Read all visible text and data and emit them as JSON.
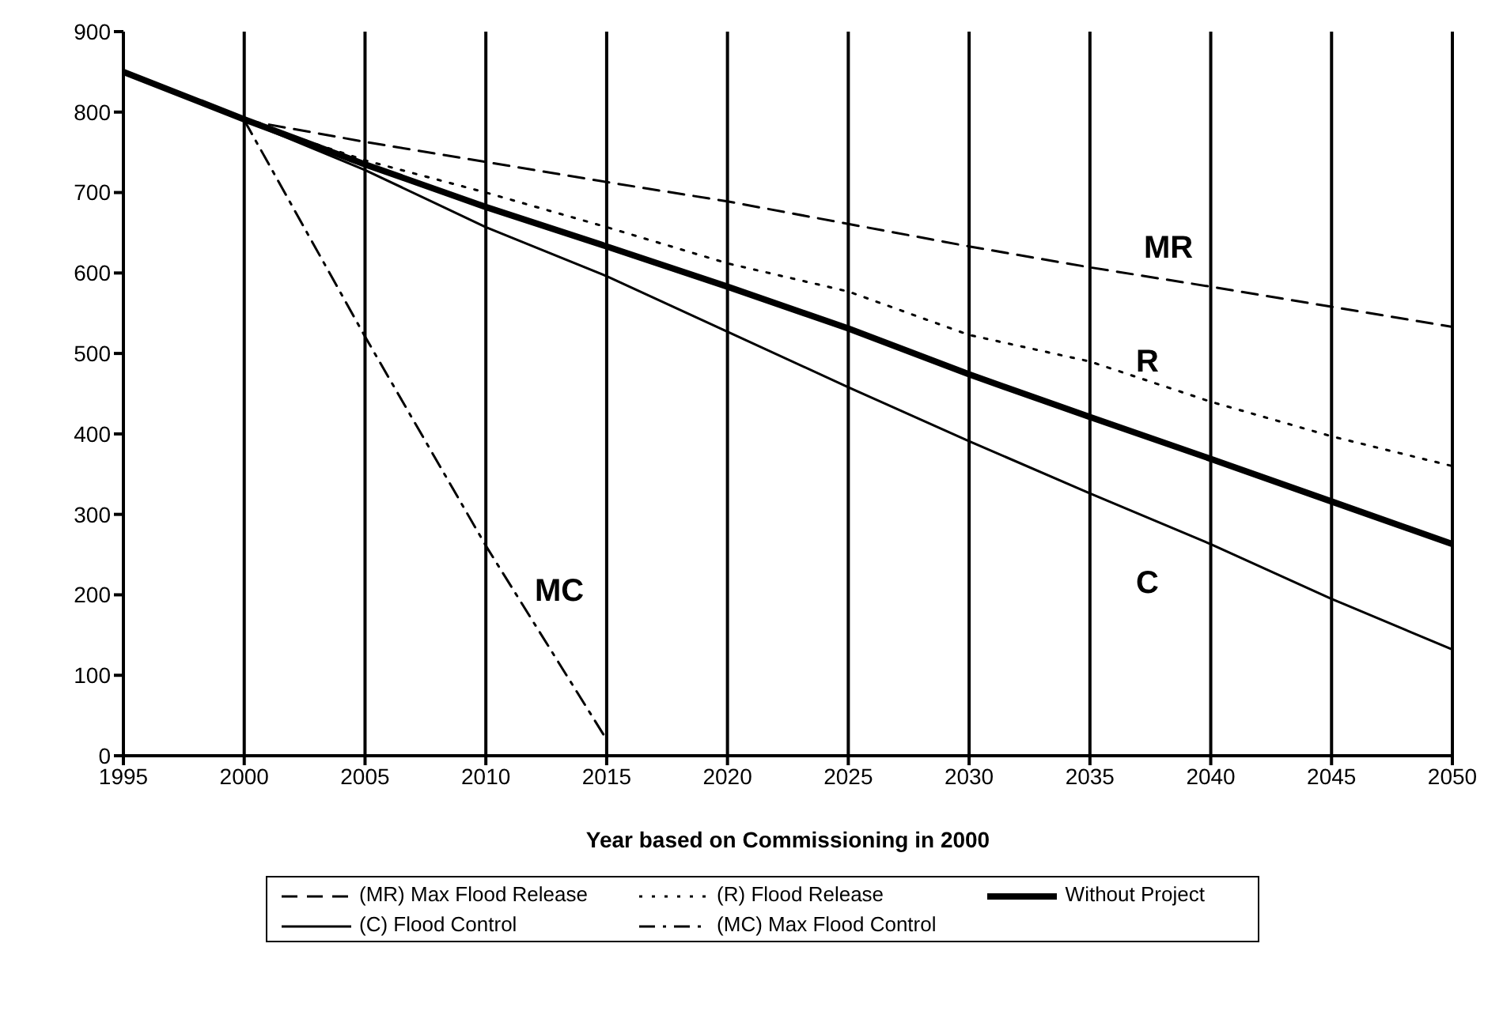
{
  "chart_data": {
    "type": "line",
    "xlabel": "Year based on Commissioning in 2000",
    "x": [
      1995,
      2000,
      2005,
      2010,
      2015,
      2020,
      2025,
      2030,
      2035,
      2040,
      2045,
      2050
    ],
    "series": [
      {
        "name": "(MR) Max Flood Release",
        "color": "#000000",
        "line_style": "dashed",
        "x": [
          2000,
          2005,
          2010,
          2015,
          2020,
          2025,
          2030,
          2035,
          2040,
          2045,
          2050
        ],
        "values": [
          790,
          763,
          738,
          713,
          689,
          661,
          633,
          607,
          583,
          558,
          533
        ]
      },
      {
        "name": "(R) Flood Release",
        "color": "#000000",
        "line_style": "dotted",
        "x": [
          2000,
          2005,
          2010,
          2015,
          2020,
          2025,
          2030,
          2035,
          2040,
          2045,
          2050
        ],
        "values": [
          790,
          740,
          700,
          657,
          612,
          577,
          523,
          490,
          440,
          397,
          360
        ]
      },
      {
        "name": "Without Project",
        "color": "#000000",
        "line_style": "solid",
        "values": [
          850,
          791,
          735,
          682,
          633,
          583,
          531,
          474,
          421,
          369,
          316,
          263
        ]
      },
      {
        "name": "(C) Flood Control",
        "color": "#000000",
        "line_style": "solid",
        "x": [
          2000,
          2005,
          2010,
          2015,
          2020,
          2025,
          2030,
          2035,
          2040,
          2045,
          2050
        ],
        "values": [
          790,
          728,
          657,
          596,
          527,
          458,
          391,
          326,
          263,
          195,
          132
        ]
      },
      {
        "name": "(MC) Max Flood Control",
        "color": "#000000",
        "line_style": "dashdot",
        "x": [
          2000,
          2005,
          2010,
          2015
        ],
        "values": [
          790,
          521,
          261,
          20
        ]
      }
    ],
    "xlim": [
      1995,
      2050
    ],
    "xticks": [
      1995,
      2000,
      2005,
      2010,
      2015,
      2020,
      2025,
      2030,
      2035,
      2040,
      2045,
      2050
    ],
    "ylim": [
      0,
      900
    ],
    "yticks": [
      0,
      100,
      200,
      300,
      400,
      500,
      600,
      700,
      800,
      900
    ],
    "grid": "x",
    "legend": "bottom",
    "marker": "none",
    "annotations": [
      "MR",
      "R",
      "C",
      "MC"
    ]
  }
}
